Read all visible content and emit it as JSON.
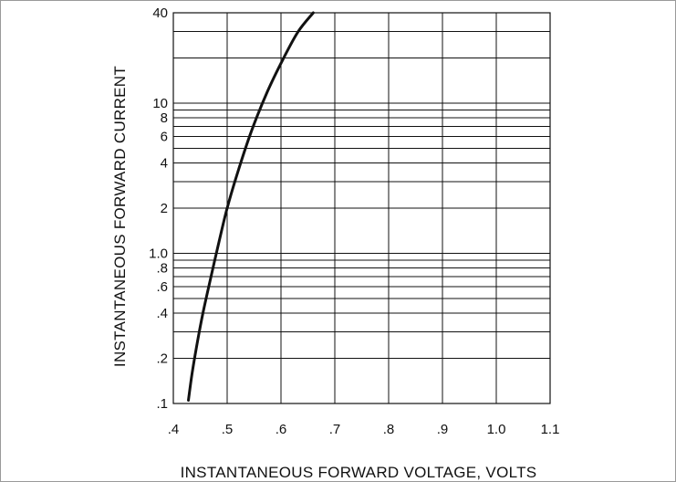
{
  "chart_data": {
    "type": "line",
    "title": "",
    "xlabel": "INSTANTANEOUS FORWARD VOLTAGE, VOLTS",
    "ylabel": "INSTANTANEOUS FORWARD CURRENT",
    "x_scale": "linear",
    "y_scale": "log",
    "xlim": [
      0.4,
      1.1
    ],
    "ylim": [
      0.1,
      40
    ],
    "grid": true,
    "x_ticks": [
      {
        "value": 0.4,
        "label": ".4"
      },
      {
        "value": 0.5,
        "label": ".5"
      },
      {
        "value": 0.6,
        "label": ".6"
      },
      {
        "value": 0.7,
        "label": ".7"
      },
      {
        "value": 0.8,
        "label": ".8"
      },
      {
        "value": 0.9,
        "label": ".9"
      },
      {
        "value": 1.0,
        "label": "1.0"
      },
      {
        "value": 1.1,
        "label": "1.1"
      }
    ],
    "y_ticks": [
      {
        "value": 0.1,
        "label": ".1"
      },
      {
        "value": 0.2,
        "label": ".2"
      },
      {
        "value": 0.4,
        "label": ".4"
      },
      {
        "value": 0.6,
        "label": ".6"
      },
      {
        "value": 0.8,
        "label": ".8"
      },
      {
        "value": 1.0,
        "label": "1.0"
      },
      {
        "value": 2,
        "label": "2"
      },
      {
        "value": 4,
        "label": "4"
      },
      {
        "value": 6,
        "label": "6"
      },
      {
        "value": 8,
        "label": "8"
      },
      {
        "value": 10,
        "label": "10"
      },
      {
        "value": 40,
        "label": "40"
      }
    ],
    "y_gridlines": [
      0.1,
      0.2,
      0.3,
      0.4,
      0.5,
      0.6,
      0.7,
      0.8,
      0.9,
      1,
      2,
      3,
      4,
      5,
      6,
      7,
      8,
      9,
      10,
      20,
      30,
      40
    ],
    "series": [
      {
        "name": "",
        "color": "#111111",
        "x": [
          0.428,
          0.435,
          0.445,
          0.455,
          0.468,
          0.485,
          0.5,
          0.52,
          0.545,
          0.575,
          0.605,
          0.632,
          0.66
        ],
        "y": [
          0.105,
          0.16,
          0.26,
          0.4,
          0.65,
          1.2,
          2.0,
          3.5,
          6.5,
          12,
          20,
          30,
          40
        ]
      }
    ]
  }
}
